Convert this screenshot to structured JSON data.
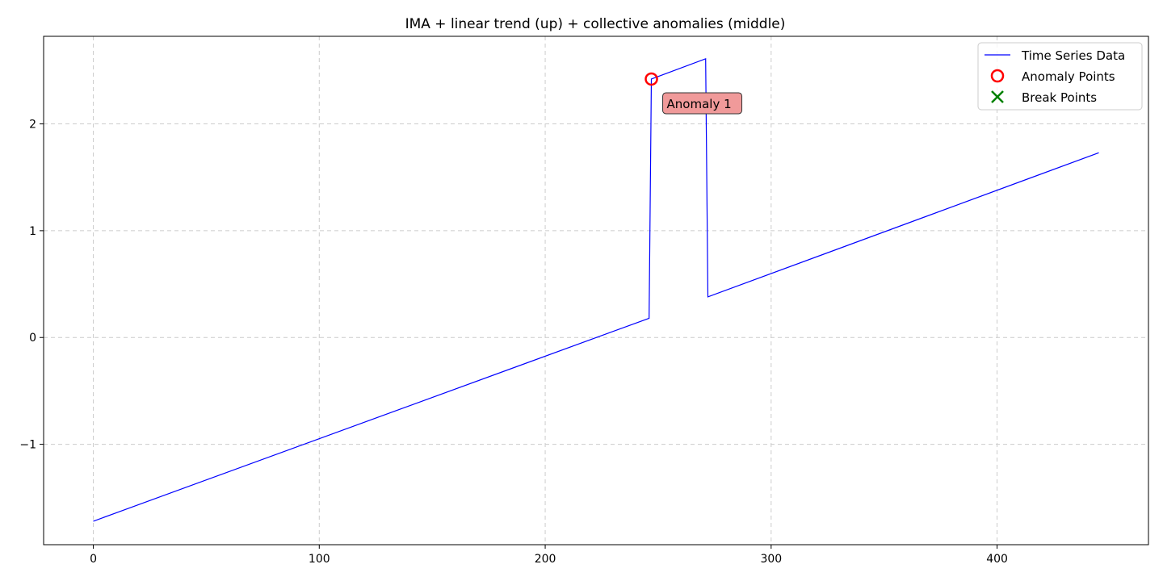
{
  "chart_data": {
    "type": "line",
    "title": "IMA + linear trend (up) + collective anomalies (middle)",
    "xlabel": "",
    "ylabel": "",
    "xlim": [
      -22,
      467
    ],
    "ylim": [
      -1.94,
      2.82
    ],
    "x_ticks": [
      0,
      100,
      200,
      300,
      400
    ],
    "y_ticks": [
      -1,
      0,
      1,
      2
    ],
    "y_tick_labels": [
      "−1",
      "0",
      "1",
      "2"
    ],
    "grid": true,
    "legend_placement": "top-right",
    "series": [
      {
        "name": "Time Series Data",
        "color": "#0000ff",
        "points": [
          [
            0,
            -1.72
          ],
          [
            246,
            0.18
          ],
          [
            247,
            2.42
          ],
          [
            271,
            2.61
          ],
          [
            272,
            0.38
          ],
          [
            445,
            1.73
          ]
        ]
      }
    ],
    "anomaly_points": {
      "name": "Anomaly Points",
      "color": "#ff0000",
      "points": [
        [
          247,
          2.42
        ]
      ]
    },
    "break_points": {
      "name": "Break Points",
      "color": "#008000",
      "points": []
    },
    "annotations": [
      {
        "text": "Anomaly 1",
        "x": 247,
        "y": 2.42,
        "bg": "#f09a9a"
      }
    ]
  }
}
